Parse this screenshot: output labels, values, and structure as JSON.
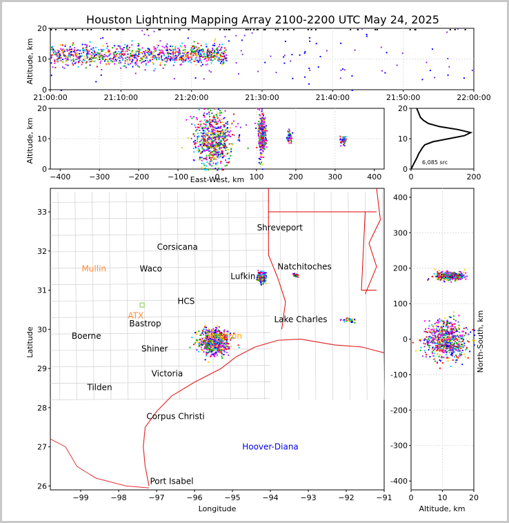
{
  "title": "Houston Lightning Mapping Array 2100-2200 UTC May 24, 2025",
  "chart_data": [
    {
      "type": "scatter",
      "panel": "time-altitude",
      "xlabel": "",
      "ylabel": "Altitude, km",
      "xticks": [
        "21:00:00",
        "21:10:00",
        "21:20:00",
        "21:30:00",
        "21:40:00",
        "21:50:00",
        "22:00:00"
      ],
      "xlim_minutes": [
        0,
        60
      ],
      "ylim": [
        0,
        20
      ],
      "yticks": [
        0,
        10,
        20
      ],
      "grid": true,
      "clusters": [
        {
          "t_start": 0,
          "t_end": 25,
          "alt_center": 11.5,
          "alt_spread": 3,
          "density": "high"
        },
        {
          "t_start": 25,
          "t_end": 60,
          "alt_center": 10,
          "alt_spread": 6,
          "density": "low"
        }
      ]
    },
    {
      "type": "scatter",
      "panel": "east-west-altitude",
      "xlabel": "East-West, km",
      "ylabel": "Altitude, km",
      "xlim": [
        -425,
        425
      ],
      "xticks": [
        -400,
        -300,
        -200,
        -100,
        0,
        100,
        200,
        300,
        400
      ],
      "ylim": [
        0,
        20
      ],
      "yticks": [
        0,
        10,
        20
      ],
      "grid": true,
      "clusters": [
        {
          "x": -10,
          "x_spread": 40,
          "alt": 10,
          "alt_spread": 8
        },
        {
          "x": 112,
          "x_spread": 8,
          "alt": 11,
          "alt_spread": 6
        },
        {
          "x": 182,
          "x_spread": 6,
          "alt": 10.5,
          "alt_spread": 2
        },
        {
          "x": 318,
          "x_spread": 8,
          "alt": 9.5,
          "alt_spread": 1.5
        }
      ]
    },
    {
      "type": "line",
      "panel": "altitude-histogram",
      "annotation": "6,085 src",
      "xlim": [
        0,
        200
      ],
      "xticks": [
        0,
        200
      ],
      "ylim": [
        0,
        20
      ],
      "yticks": [
        0,
        10,
        20
      ],
      "profile": [
        [
          0,
          0
        ],
        [
          5,
          1
        ],
        [
          10,
          2
        ],
        [
          15,
          3
        ],
        [
          20,
          4
        ],
        [
          24,
          5
        ],
        [
          30,
          6
        ],
        [
          36,
          7
        ],
        [
          44,
          8
        ],
        [
          70,
          9
        ],
        [
          120,
          10
        ],
        [
          170,
          11
        ],
        [
          190,
          12
        ],
        [
          150,
          13
        ],
        [
          90,
          14
        ],
        [
          55,
          15
        ],
        [
          40,
          16
        ],
        [
          30,
          17
        ],
        [
          26,
          18
        ],
        [
          22,
          19
        ],
        [
          18,
          20
        ]
      ]
    },
    {
      "type": "scatter",
      "panel": "plan-view",
      "xlabel": "Longitude",
      "ylabel": "Latitude",
      "xlim": [
        -99.8,
        -91
      ],
      "ylim": [
        25.9,
        33.6
      ],
      "xticks": [
        -99,
        -98,
        -97,
        -96,
        -95,
        -94,
        -93,
        -92,
        -91
      ],
      "yticks": [
        26,
        27,
        28,
        29,
        30,
        31,
        32,
        33
      ],
      "places": [
        {
          "name": "Shreveport",
          "lon": -93.75,
          "lat": 32.6,
          "color": "#000000"
        },
        {
          "name": "Corsicana",
          "lon": -96.45,
          "lat": 32.1,
          "color": "#000000"
        },
        {
          "name": "Natchitoches",
          "lon": -93.1,
          "lat": 31.6,
          "color": "#000000"
        },
        {
          "name": "Mullin",
          "lon": -98.65,
          "lat": 31.55,
          "color": "#ff8c3c"
        },
        {
          "name": "Waco",
          "lon": -97.15,
          "lat": 31.55,
          "color": "#000000"
        },
        {
          "name": "Lufkin",
          "lon": -94.72,
          "lat": 31.35,
          "color": "#000000"
        },
        {
          "name": "HCS",
          "lon": -96.22,
          "lat": 30.72,
          "color": "#000000"
        },
        {
          "name": "ATX",
          "lon": -97.55,
          "lat": 30.35,
          "color": "#ff8c3c"
        },
        {
          "name": "Bastrop",
          "lon": -97.3,
          "lat": 30.15,
          "color": "#000000"
        },
        {
          "name": "Lake Charles",
          "lon": -93.2,
          "lat": 30.25,
          "color": "#000000"
        },
        {
          "name": "Boerne",
          "lon": -98.85,
          "lat": 29.83,
          "color": "#000000"
        },
        {
          "name": "Houston",
          "lon": -95.2,
          "lat": 29.83,
          "color": "#ffa500"
        },
        {
          "name": "Shiner",
          "lon": -97.05,
          "lat": 29.5,
          "color": "#000000"
        },
        {
          "name": "Victoria",
          "lon": -96.72,
          "lat": 28.87,
          "color": "#000000"
        },
        {
          "name": "Tilden",
          "lon": -98.5,
          "lat": 28.52,
          "color": "#000000"
        },
        {
          "name": "Corpus Christi",
          "lon": -96.5,
          "lat": 27.78,
          "color": "#000000"
        },
        {
          "name": "Hoover-Diana",
          "lon": -94.0,
          "lat": 27.0,
          "color": "#0000ee"
        },
        {
          "name": "Port Isabel",
          "lon": -96.6,
          "lat": 26.12,
          "color": "#000000"
        }
      ],
      "clusters": [
        {
          "lon": -95.5,
          "lat": 29.7,
          "lon_spread": 0.35,
          "lat_spread": 0.28
        },
        {
          "lon": -94.25,
          "lat": 31.35,
          "lon_spread": 0.1,
          "lat_spread": 0.12
        },
        {
          "lon": -93.35,
          "lat": 31.4,
          "lon_spread": 0.07,
          "lat_spread": 0.04
        },
        {
          "lon": -91.95,
          "lat": 30.25,
          "lon_spread": 0.15,
          "lat_spread": 0.05
        }
      ]
    },
    {
      "type": "scatter",
      "panel": "altitude-north-south",
      "xlabel": "Altitude, km",
      "ylabel": "North-South, km",
      "xlim": [
        0,
        20
      ],
      "xticks": [
        0,
        10,
        20
      ],
      "ylim": [
        -425,
        425
      ],
      "yticks": [
        -400,
        -300,
        -200,
        -100,
        0,
        100,
        200,
        300,
        400
      ],
      "clusters": [
        {
          "alt": 12,
          "alt_spread": 4,
          "ns": 180,
          "ns_spread": 10
        },
        {
          "alt": 11,
          "alt_spread": 6,
          "ns": 0,
          "ns_spread": 45
        }
      ]
    }
  ]
}
